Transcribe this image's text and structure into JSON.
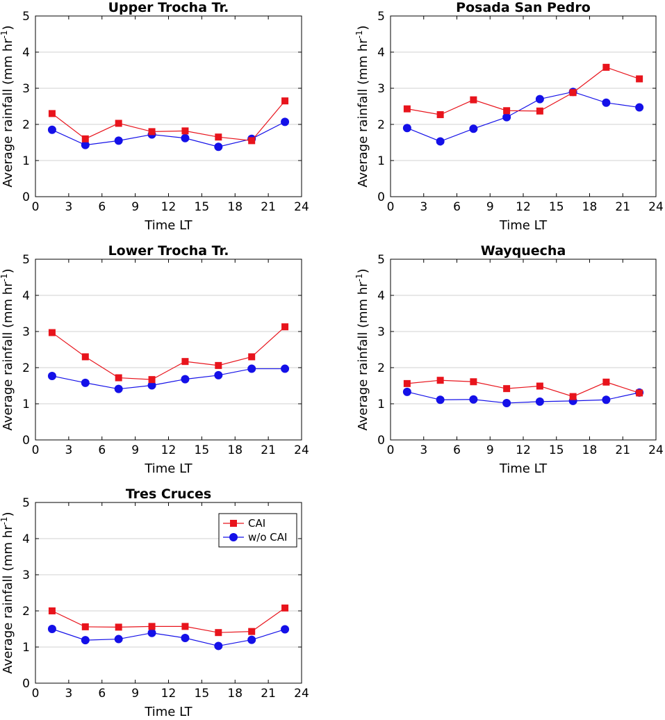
{
  "colors": {
    "cai": "#e8141c",
    "wo_cai": "#1410e8",
    "grid": "#d0d0d0",
    "axis": "#000000"
  },
  "chart_data": [
    {
      "type": "line",
      "title": "Upper Trocha Tr.",
      "xlabel": "Time LT",
      "ylabel": "Average rainfall (mm hr",
      "ylabel_sup": "-1",
      "ylabel_close": ")",
      "xlim": [
        0,
        24
      ],
      "ylim": [
        0,
        5
      ],
      "xticks": [
        "0",
        "3",
        "6",
        "9",
        "12",
        "15",
        "18",
        "21",
        "24"
      ],
      "yticks": [
        "0",
        "1",
        "2",
        "3",
        "4",
        "5"
      ],
      "grid": "horizontal",
      "x": [
        1.5,
        4.5,
        7.5,
        10.5,
        13.5,
        16.5,
        19.5,
        22.5
      ],
      "series": [
        {
          "name": "CAI",
          "marker": "square",
          "values": [
            2.3,
            1.6,
            2.03,
            1.8,
            1.82,
            1.65,
            1.55,
            2.65
          ]
        },
        {
          "name": "w/o CAI",
          "marker": "circle",
          "values": [
            1.85,
            1.43,
            1.55,
            1.72,
            1.62,
            1.38,
            1.6,
            2.07
          ]
        }
      ]
    },
    {
      "type": "line",
      "title": "Posada San Pedro",
      "xlabel": "Time LT",
      "ylabel": "Average rainfall (mm hr",
      "ylabel_sup": "-1",
      "ylabel_close": ")",
      "xlim": [
        0,
        24
      ],
      "ylim": [
        0,
        5
      ],
      "xticks": [
        "0",
        "3",
        "6",
        "9",
        "12",
        "15",
        "18",
        "21",
        "24"
      ],
      "yticks": [
        "0",
        "1",
        "2",
        "3",
        "4",
        "5"
      ],
      "grid": "horizontal",
      "x": [
        1.5,
        4.5,
        7.5,
        10.5,
        13.5,
        16.5,
        19.5,
        22.5
      ],
      "series": [
        {
          "name": "CAI",
          "marker": "square",
          "values": [
            2.43,
            2.27,
            2.68,
            2.38,
            2.37,
            2.88,
            3.58,
            3.26
          ]
        },
        {
          "name": "w/o CAI",
          "marker": "circle",
          "values": [
            1.9,
            1.53,
            1.88,
            2.2,
            2.7,
            2.9,
            2.6,
            2.47
          ]
        }
      ]
    },
    {
      "type": "line",
      "title": "Lower Trocha Tr.",
      "xlabel": "Time LT",
      "ylabel": "Average rainfall (mm hr",
      "ylabel_sup": "-1",
      "ylabel_close": ")",
      "xlim": [
        0,
        24
      ],
      "ylim": [
        0,
        5
      ],
      "xticks": [
        "0",
        "3",
        "6",
        "9",
        "12",
        "15",
        "18",
        "21",
        "24"
      ],
      "yticks": [
        "0",
        "1",
        "2",
        "3",
        "4",
        "5"
      ],
      "grid": "horizontal",
      "x": [
        1.5,
        4.5,
        7.5,
        10.5,
        13.5,
        16.5,
        19.5,
        22.5
      ],
      "series": [
        {
          "name": "CAI",
          "marker": "square",
          "values": [
            2.97,
            2.3,
            1.72,
            1.67,
            2.17,
            2.06,
            2.3,
            3.13
          ]
        },
        {
          "name": "w/o CAI",
          "marker": "circle",
          "values": [
            1.77,
            1.58,
            1.41,
            1.51,
            1.68,
            1.79,
            1.97,
            1.97
          ]
        }
      ]
    },
    {
      "type": "line",
      "title": "Wayquecha",
      "xlabel": "Time LT",
      "ylabel": "Average rainfall (mm hr",
      "ylabel_sup": "-1",
      "ylabel_close": ")",
      "xlim": [
        0,
        24
      ],
      "ylim": [
        0,
        5
      ],
      "xticks": [
        "0",
        "3",
        "6",
        "9",
        "12",
        "15",
        "18",
        "21",
        "24"
      ],
      "yticks": [
        "0",
        "1",
        "2",
        "3",
        "4",
        "5"
      ],
      "grid": "horizontal",
      "x": [
        1.5,
        4.5,
        7.5,
        10.5,
        13.5,
        16.5,
        19.5,
        22.5
      ],
      "series": [
        {
          "name": "CAI",
          "marker": "square",
          "values": [
            1.56,
            1.65,
            1.61,
            1.42,
            1.49,
            1.2,
            1.6,
            1.3
          ]
        },
        {
          "name": "w/o CAI",
          "marker": "circle",
          "values": [
            1.33,
            1.11,
            1.12,
            1.02,
            1.06,
            1.08,
            1.11,
            1.31
          ]
        }
      ]
    },
    {
      "type": "line",
      "title": "Tres Cruces",
      "xlabel": "Time LT",
      "ylabel": "Average rainfall (mm hr",
      "ylabel_sup": "-1",
      "ylabel_close": ")",
      "xlim": [
        0,
        24
      ],
      "ylim": [
        0,
        5
      ],
      "xticks": [
        "0",
        "3",
        "6",
        "9",
        "12",
        "15",
        "18",
        "21",
        "24"
      ],
      "yticks": [
        "0",
        "1",
        "2",
        "3",
        "4",
        "5"
      ],
      "grid": "horizontal",
      "legend": {
        "placement": "top-right",
        "entries": [
          "CAI",
          "w/o CAI"
        ]
      },
      "x": [
        1.5,
        4.5,
        7.5,
        10.5,
        13.5,
        16.5,
        19.5,
        22.5
      ],
      "series": [
        {
          "name": "CAI",
          "marker": "square",
          "values": [
            2.0,
            1.56,
            1.55,
            1.57,
            1.57,
            1.4,
            1.43,
            2.08
          ]
        },
        {
          "name": "w/o CAI",
          "marker": "circle",
          "values": [
            1.5,
            1.19,
            1.22,
            1.39,
            1.25,
            1.03,
            1.2,
            1.49
          ]
        }
      ]
    }
  ]
}
